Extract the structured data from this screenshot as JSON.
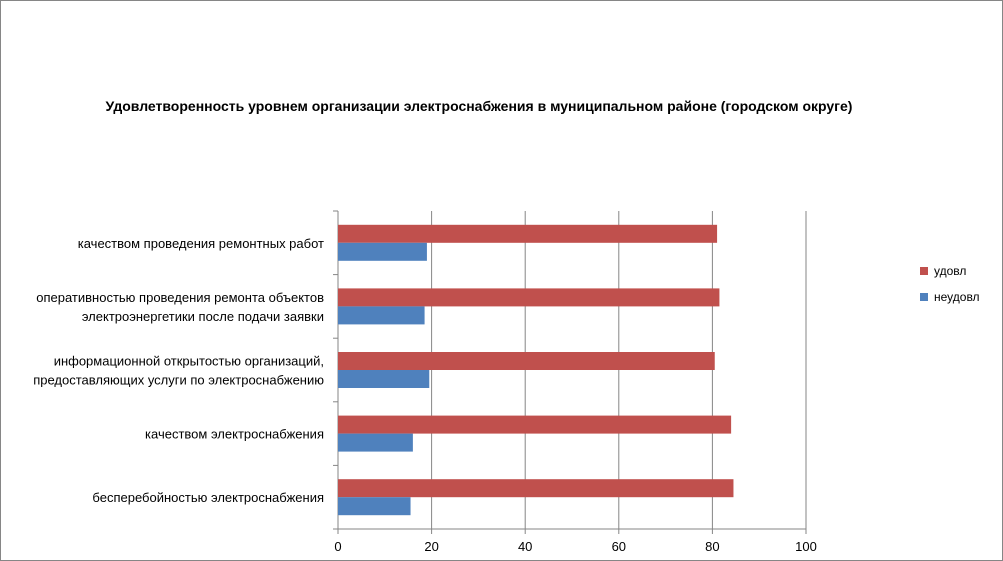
{
  "chart_data": {
    "type": "bar",
    "orientation": "horizontal",
    "title": "Удовлетворенность уровнем организации электроснабжения в муниципальном районе (городском округе)",
    "xlabel": "",
    "ylabel": "",
    "xlim": [
      0,
      100
    ],
    "x_ticks": [
      0,
      20,
      40,
      60,
      80,
      100
    ],
    "grid": "vertical",
    "legend_position": "right",
    "categories": [
      [
        "качеством проведения ремонтных работ"
      ],
      [
        "оперативностью проведения ремонта объектов",
        "электроэнергетики после подачи заявки"
      ],
      [
        "информационной открытостью организаций,",
        "предоставляющих услуги по электроснабжению"
      ],
      [
        "качеством электроснабжения"
      ],
      [
        "бесперебойностью электроснабжения"
      ]
    ],
    "series": [
      {
        "name": "удовл",
        "color": "#C0504D",
        "values": [
          81,
          81.5,
          80.5,
          84,
          84.5
        ]
      },
      {
        "name": "неудовл",
        "color": "#4F81BD",
        "values": [
          19,
          18.5,
          19.5,
          16,
          15.5
        ]
      }
    ]
  }
}
